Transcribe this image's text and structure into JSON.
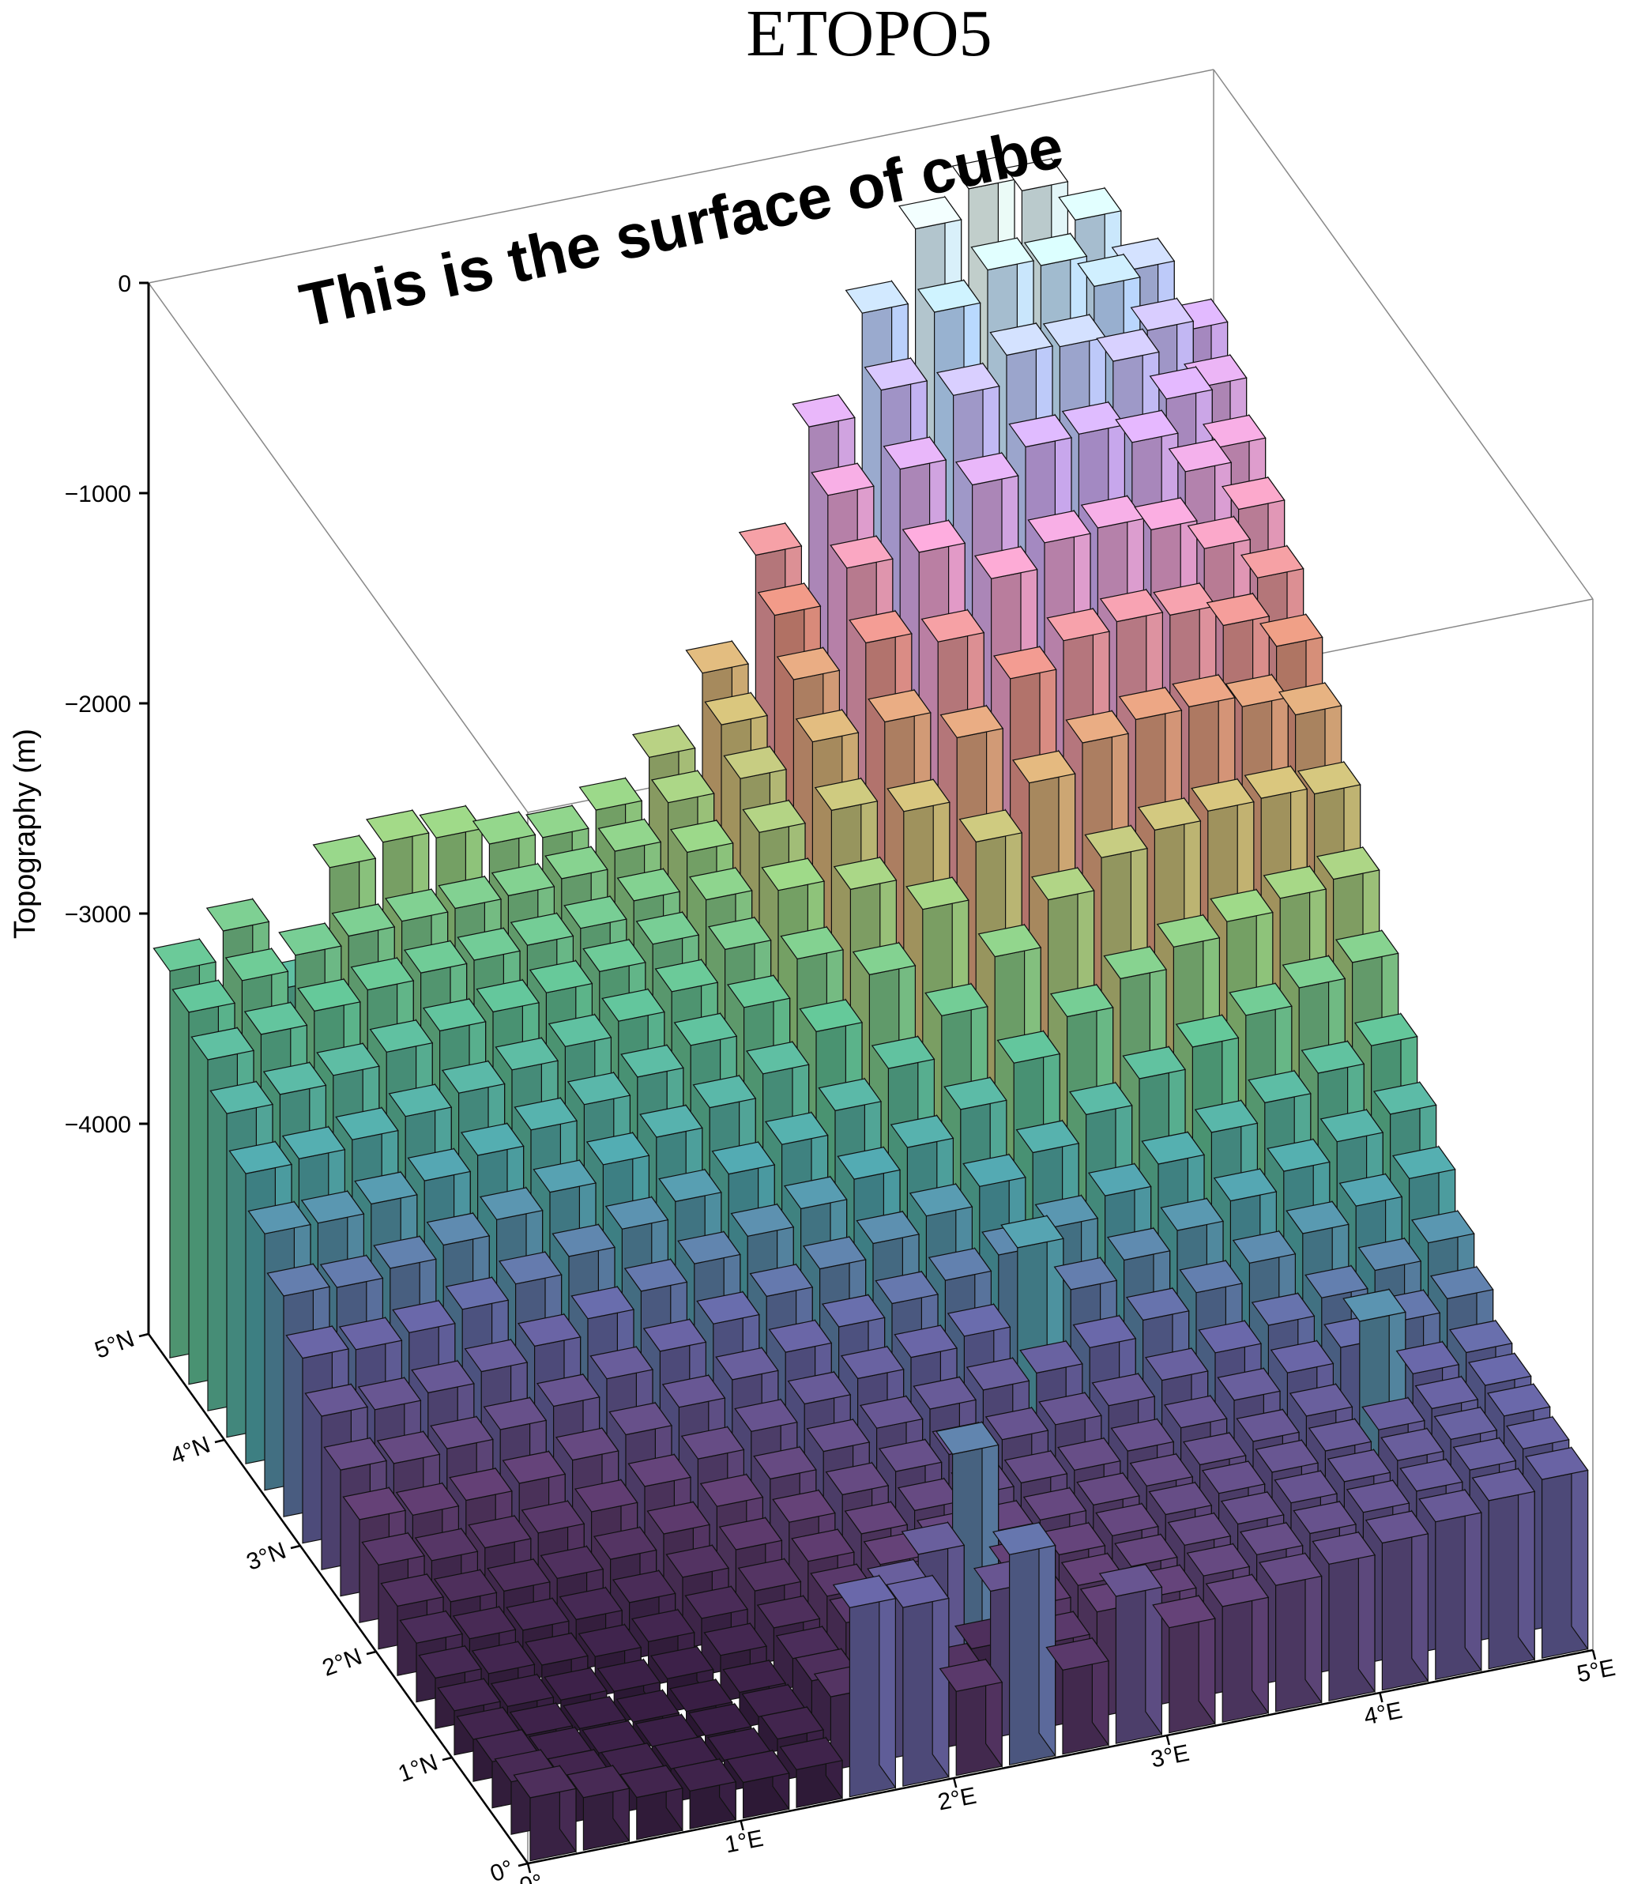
{
  "chart_data": {
    "type": "3d-bar",
    "title": "ETOPO5",
    "annotation": "This is the surface of cube",
    "zlabel": "Topography (m)",
    "zlim": [
      -5000,
      0
    ],
    "z_ticks": [
      "0",
      "−1000",
      "−2000",
      "−3000",
      "−4000"
    ],
    "x_ticks": [
      "0°",
      "1°E",
      "2°E",
      "3°E",
      "4°E",
      "5°E"
    ],
    "y_ticks": [
      "0°",
      "1°N",
      "2°N",
      "3°N",
      "4°N",
      "5°N"
    ],
    "xlim": [
      0,
      5
    ],
    "ylim": [
      0,
      5
    ],
    "grid_cells_per_side": 20,
    "topography_rows_south_to_north": [
      [
        -4700,
        -4750,
        -4800,
        -4820,
        -4830,
        -4820,
        -4100,
        -4150,
        -4600,
        -4000,
        -4600,
        -4300,
        -4500,
        -4450,
        -4400,
        -4350,
        -4300,
        -4250,
        -4200,
        -4150
      ],
      [
        -4750,
        -4800,
        -4820,
        -4840,
        -4850,
        -4800,
        -4650,
        -4200,
        -4650,
        -4300,
        -4600,
        -4500,
        -4480,
        -4430,
        -4380,
        -4330,
        -4280,
        -4230,
        -4180,
        -4130
      ],
      [
        -4780,
        -4820,
        -4840,
        -4860,
        -4860,
        -4820,
        -4700,
        -4400,
        -4200,
        -4700,
        -4550,
        -4500,
        -4460,
        -4410,
        -4360,
        -4310,
        -4260,
        -4210,
        -4160,
        -4100
      ],
      [
        -4800,
        -4830,
        -4850,
        -4870,
        -4870,
        -4830,
        -4720,
        -4600,
        -4500,
        -3900,
        -4500,
        -4480,
        -4440,
        -4390,
        -4340,
        -4290,
        -4240,
        -4190,
        -4140,
        -4080
      ],
      [
        -4790,
        -4820,
        -4840,
        -4850,
        -4840,
        -4780,
        -4700,
        -4600,
        -4500,
        -4450,
        -4450,
        -4440,
        -4420,
        -4380,
        -4330,
        -4270,
        -4200,
        -3800,
        -4100,
        -4050
      ],
      [
        -4760,
        -4790,
        -4800,
        -4810,
        -4790,
        -4730,
        -4650,
        -4560,
        -4480,
        -4420,
        -4400,
        -4390,
        -4380,
        -4340,
        -4280,
        -4200,
        -4120,
        -4050,
        -3980,
        -3920
      ],
      [
        -4720,
        -4750,
        -4760,
        -4760,
        -4730,
        -4660,
        -4580,
        -4500,
        -4420,
        -4360,
        -4330,
        -4310,
        -4290,
        -4250,
        -4180,
        -4100,
        -4020,
        -3940,
        -3860,
        -3780
      ],
      [
        -4670,
        -4700,
        -4700,
        -4690,
        -4650,
        -4580,
        -4500,
        -4420,
        -4340,
        -4280,
        -4240,
        -4200,
        -4170,
        -4100,
        -4020,
        -3940,
        -3850,
        -3760,
        -3680,
        -3600
      ],
      [
        -4600,
        -4630,
        -4620,
        -4600,
        -4550,
        -4480,
        -4400,
        -4320,
        -4240,
        -4170,
        -4120,
        -4070,
        -3700,
        -3950,
        -3860,
        -3770,
        -3680,
        -3590,
        -3500,
        -3420
      ],
      [
        -4510,
        -4540,
        -4520,
        -4490,
        -4430,
        -4360,
        -4280,
        -4200,
        -4120,
        -4050,
        -3990,
        -3930,
        -3860,
        -3780,
        -3680,
        -3580,
        -3480,
        -3390,
        -3300,
        -3220
      ],
      [
        -4400,
        -4420,
        -4400,
        -4360,
        -4300,
        -4220,
        -4140,
        -4060,
        -3980,
        -3900,
        -3830,
        -3750,
        -3660,
        -3550,
        -3420,
        -3300,
        -3200,
        -3100,
        -3020,
        -2950
      ],
      [
        -4270,
        -4290,
        -4260,
        -4210,
        -4140,
        -4060,
        -3980,
        -3900,
        -3820,
        -3740,
        -3650,
        -3550,
        -3420,
        -3250,
        -3080,
        -2950,
        -2850,
        -2780,
        -2720,
        -2680
      ],
      [
        -4120,
        -4130,
        -4100,
        -4040,
        -3970,
        -3890,
        -3810,
        -3730,
        -3650,
        -3560,
        -3450,
        -3300,
        -3100,
        -2870,
        -2650,
        -2500,
        -2420,
        -2380,
        -2370,
        -2400
      ],
      [
        -3950,
        -3960,
        -3920,
        -3860,
        -3790,
        -3710,
        -3630,
        -3550,
        -3460,
        -3350,
        -3200,
        -2980,
        -2720,
        -2450,
        -2220,
        -2080,
        -2020,
        -2010,
        -2060,
        -2150
      ],
      [
        -3780,
        -3780,
        -3740,
        -3680,
        -3610,
        -3540,
        -3470,
        -3390,
        -3290,
        -3160,
        -2980,
        -2700,
        -2380,
        -2080,
        -1850,
        -1720,
        -1680,
        -1700,
        -1800,
        -1950
      ],
      [
        -3620,
        -3600,
        -3560,
        -3500,
        -3440,
        -3380,
        -3320,
        -3250,
        -3160,
        -3010,
        -2780,
        -2450,
        -2080,
        -1750,
        -1500,
        -1380,
        -1360,
        -1420,
        -1560,
        -1750
      ],
      [
        -3460,
        -3420,
        -3380,
        -3320,
        -3270,
        -3230,
        -3190,
        -3140,
        -3060,
        -2900,
        -2630,
        -2250,
        -1830,
        -1450,
        -1180,
        -1050,
        -1040,
        -1130,
        -1320,
        -1550
      ],
      [
        -3330,
        -3260,
        -3200,
        -3150,
        -3120,
        -3110,
        -3090,
        -3060,
        -2980,
        -2800,
        -2500,
        -2080,
        -1600,
        -1180,
        -880,
        -740,
        -750,
        -870,
        -1100,
        -1380
      ],
      [
        -3230,
        -3130,
        -3060,
        -3020,
        -3000,
        -2990,
        -2980,
        -2950,
        -2870,
        -2690,
        -2370,
        -1900,
        -1380,
        -930,
        -610,
        -460,
        -490,
        -640,
        -900,
        -1220
      ],
      [
        -3160,
        -3020,
        -3350,
        -2820,
        -2750,
        -2780,
        -2860,
        -2880,
        -2800,
        -2600,
        -2250,
        -1740,
        -1180,
        -690,
        -340,
        -200,
        -260,
        -450,
        -740,
        -1080
      ]
    ]
  },
  "colors": {
    "palette": [
      "#2a1433",
      "#5a3a6a",
      "#5f5f9a",
      "#4a9aa0",
      "#5ab38a",
      "#8fc37a",
      "#c8b070",
      "#d88a7a",
      "#e39ac6",
      "#c6a8ee",
      "#b8dcff",
      "#f2fff6"
    ],
    "frame": "#888888",
    "bar_edge": "#111111"
  }
}
